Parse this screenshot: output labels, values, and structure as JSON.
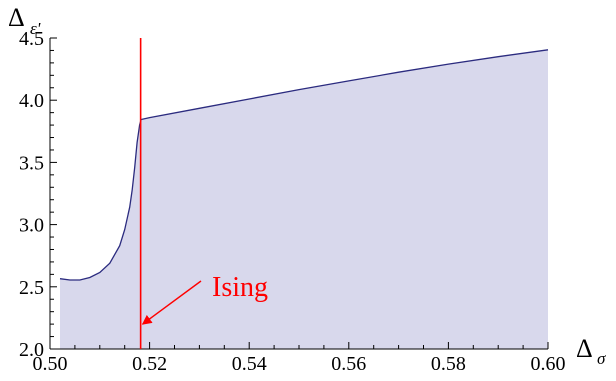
{
  "chart_data": {
    "type": "area",
    "title": "",
    "xlabel": "Δσ",
    "ylabel": "Δε'",
    "xlabel_parts": {
      "main": "Δ",
      "sub": "σ"
    },
    "ylabel_parts": {
      "main": "Δ",
      "sub": "ε'"
    },
    "xlim": [
      0.5,
      0.6
    ],
    "ylim": [
      2.0,
      4.5
    ],
    "x_ticks": [
      0.5,
      0.52,
      0.54,
      0.56,
      0.58,
      0.6
    ],
    "x_tick_labels": [
      "0.50",
      "0.52",
      "0.54",
      "0.56",
      "0.58",
      "0.60"
    ],
    "y_ticks": [
      2.0,
      2.5,
      3.0,
      3.5,
      4.0,
      4.5
    ],
    "y_tick_labels": [
      "2.0",
      "2.5",
      "3.0",
      "3.5",
      "4.0",
      "4.5"
    ],
    "grid": false,
    "series": [
      {
        "x": [
          0.502,
          0.504,
          0.506,
          0.508,
          0.51,
          0.512,
          0.514,
          0.515,
          0.516,
          0.5165,
          0.517,
          0.5175,
          0.518,
          0.5183,
          0.52,
          0.53,
          0.54,
          0.55,
          0.56,
          0.57,
          0.58,
          0.59,
          0.6
        ],
        "y": [
          2.565,
          2.555,
          2.555,
          2.575,
          2.615,
          2.69,
          2.83,
          2.96,
          3.14,
          3.28,
          3.46,
          3.66,
          3.8,
          3.845,
          3.86,
          3.935,
          4.01,
          4.085,
          4.155,
          4.225,
          4.29,
          4.35,
          4.405
        ]
      }
    ],
    "colors": {
      "region": "#d8d8ec",
      "boundary": "#2b2b7f",
      "marker": "#ff0000"
    },
    "vertical_line": {
      "x": 0.5182
    },
    "annotation": {
      "text": "Ising",
      "color": "#ff0000",
      "arrow_to": [
        0.5182,
        2.2
      ]
    }
  }
}
